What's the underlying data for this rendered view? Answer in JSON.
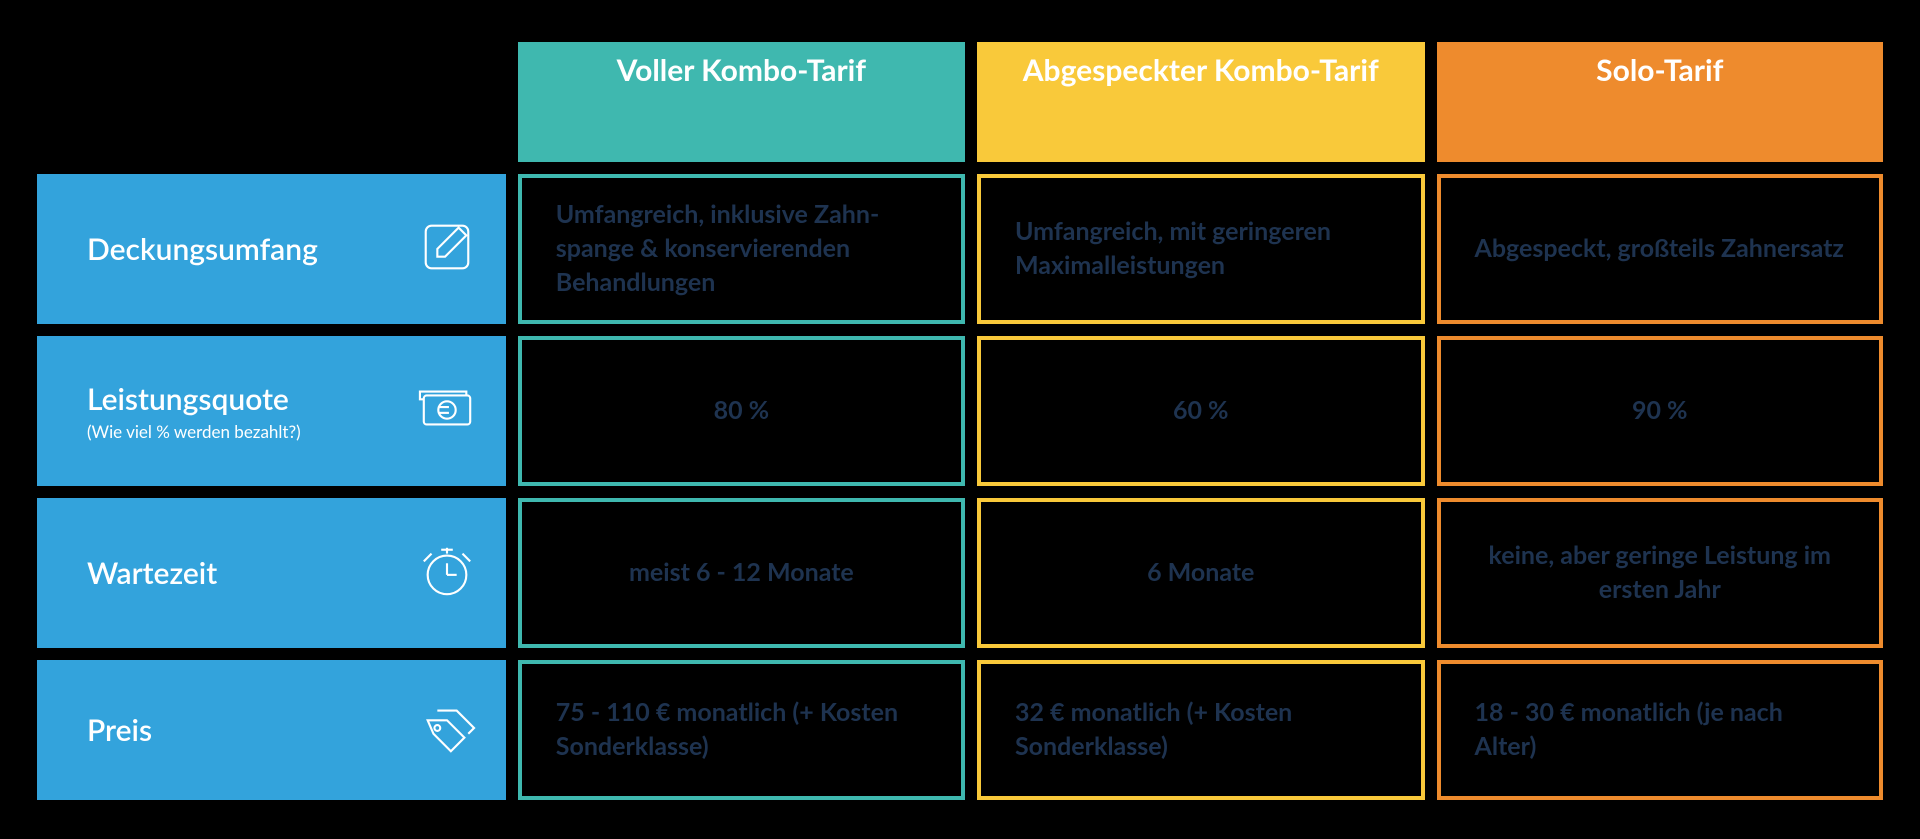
{
  "colors": {
    "row_label_bg": "#33a3dc",
    "text_dark": "#1e3350",
    "plan1_header_bg": "#3fb8af",
    "plan1_border": "#3fb8af",
    "plan2_header_bg": "#f9c93a",
    "plan2_border": "#f9c93a",
    "plan3_header_bg": "#ee8b2d",
    "plan3_border": "#ee8b2d"
  },
  "plans": [
    {
      "name": "Voller Kombo-Tarif"
    },
    {
      "name": "Abgespeckter Kombo-Tarif"
    },
    {
      "name": "Solo-Tarif"
    }
  ],
  "rows": [
    {
      "label": "Deckungsumfang",
      "sub": "",
      "icon": "edit",
      "align": "left",
      "cells": [
        "Umfangreich, inklusive Zahn­spange & konservierenden Behandlungen",
        "Umfangreich, mit geringeren Maximalleistungen",
        "Abgespeckt, großteils Zahnersatz"
      ]
    },
    {
      "label": "Leistungsquote",
      "sub": "(Wie viel % werden bezahlt?)",
      "icon": "euro",
      "align": "center",
      "cells": [
        "80 %",
        "60 %",
        "90 %"
      ]
    },
    {
      "label": "Wartezeit",
      "sub": "",
      "icon": "clock",
      "align": "center",
      "cells": [
        "meist 6 - 12 Monate",
        "6 Monate",
        "keine, aber geringe Leistung im ersten Jahr"
      ]
    },
    {
      "label": "Preis",
      "sub": "",
      "icon": "tag",
      "align": "left",
      "cells": [
        "75 - 110 € monatlich (+ Kosten Sonderklasse)",
        "32 € monatlich (+ Kosten Sonderklasse)",
        "18 - 30 € monatlich (je nach Alter)"
      ]
    }
  ]
}
